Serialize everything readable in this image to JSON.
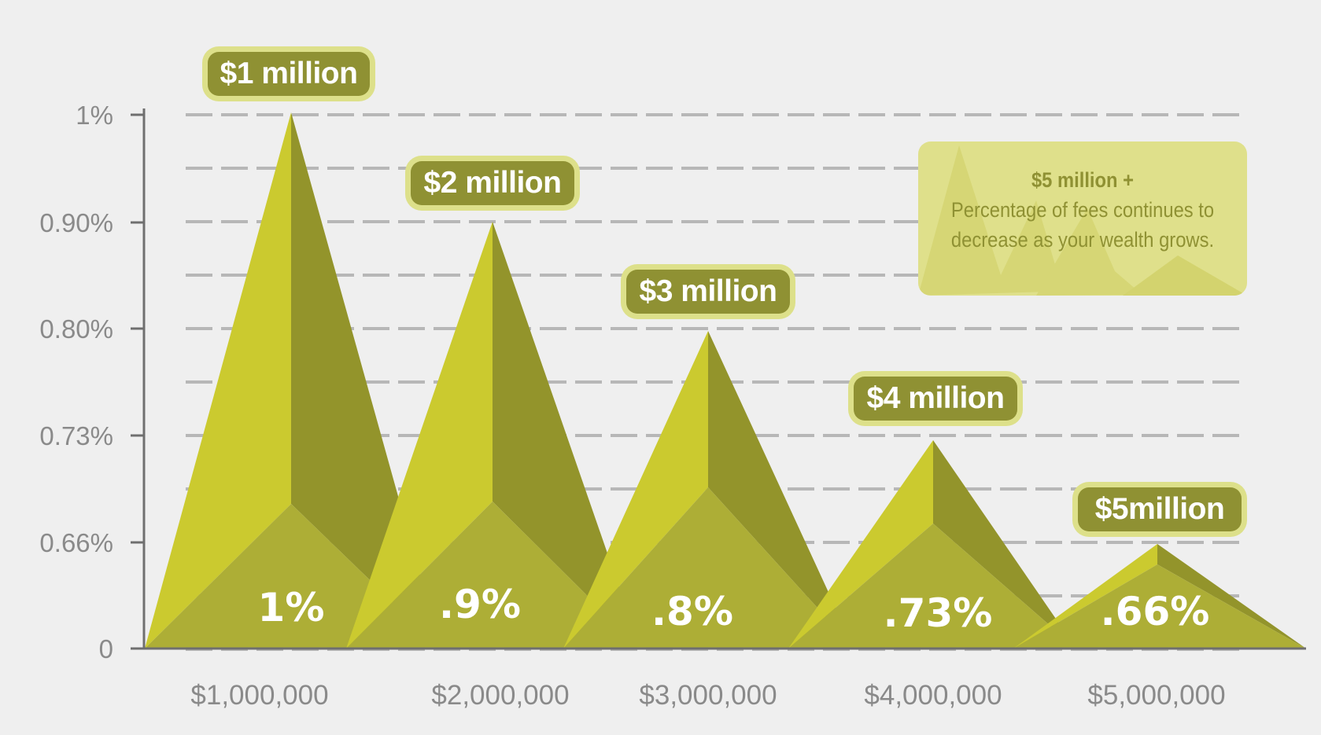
{
  "chart_data": {
    "type": "area",
    "categories": [
      "$1,000,000",
      "$2,000,000",
      "$3,000,000",
      "$4,000,000",
      "$5,000,000"
    ],
    "values": [
      1.0,
      0.9,
      0.8,
      0.73,
      0.66
    ],
    "value_labels": [
      "1%",
      ".9%",
      ".8%",
      ".73%",
      ".66%"
    ],
    "bubble_labels": [
      "$1 million",
      "$2 million",
      "$3 million",
      "$4 million",
      "$5million"
    ],
    "y_tick_labels": [
      "0",
      "0.66%",
      "0.73%",
      "0.80%",
      "0.90%",
      "1%"
    ],
    "grid": true,
    "colors": {
      "light": "#cbca2f",
      "dark": "#93942b",
      "mid": "#adae36",
      "bubble": "#8f9133",
      "bubble_border": "#dde08a",
      "axis": "#6f6f6f",
      "grid": "#b7b7b7"
    }
  },
  "note": {
    "title": "$5 million +",
    "lines": [
      "Percentage of fees continues to",
      "decrease as your wealth grows."
    ]
  }
}
